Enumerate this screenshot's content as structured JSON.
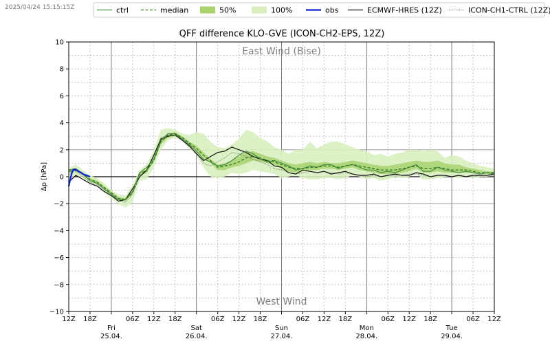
{
  "timestamp": "2025/04/24 15:15:15Z",
  "colors": {
    "ctrl": "#4a8a4a",
    "median": "#2e7d1e",
    "band50": "#a8d26e",
    "band100": "#d9efc0",
    "obs": "#0b1fd6",
    "ecmwf": "#111111",
    "ch1": "#666666",
    "grid": "#b0b0b0",
    "annotation": "#808080"
  },
  "chart_data": {
    "type": "line",
    "title": "QFF difference KLO-GVE (ICON-CH2-EPS, 12Z)",
    "xlabel": "",
    "ylabel": "Δp [hPa]",
    "ylim": [
      -10,
      10
    ],
    "yticks": [
      -10,
      -8,
      -6,
      -4,
      -2,
      0,
      2,
      4,
      6,
      8,
      10
    ],
    "xlim": [
      0,
      120
    ],
    "grid": true,
    "legend_position": "top",
    "legend": [
      {
        "key": "ctrl",
        "label": "ctrl",
        "style": "solid"
      },
      {
        "key": "median",
        "label": "median",
        "style": "dashed"
      },
      {
        "key": "band50",
        "label": "50%",
        "style": "fill"
      },
      {
        "key": "band100",
        "label": "100%",
        "style": "fill"
      },
      {
        "key": "obs",
        "label": "obs",
        "style": "solid-thick"
      },
      {
        "key": "ecmwf",
        "label": "ECMWF-HRES (12Z)",
        "style": "solid"
      },
      {
        "key": "ch1",
        "label": "ICON-CH1-CTRL (12Z)",
        "style": "dotted"
      }
    ],
    "annotations": {
      "top": "East Wind (Bise)",
      "bottom": "West Wind"
    },
    "reference_lines": [
      2,
      0,
      -2
    ],
    "x_tick_labels": [
      {
        "h": 0,
        "label": "12Z"
      },
      {
        "h": 6,
        "label": "18Z"
      },
      {
        "h": 18,
        "label": "06Z"
      },
      {
        "h": 24,
        "label": "12Z"
      },
      {
        "h": 30,
        "label": "18Z"
      },
      {
        "h": 42,
        "label": "06Z"
      },
      {
        "h": 48,
        "label": "12Z"
      },
      {
        "h": 54,
        "label": "18Z"
      },
      {
        "h": 66,
        "label": "06Z"
      },
      {
        "h": 72,
        "label": "12Z"
      },
      {
        "h": 78,
        "label": "18Z"
      },
      {
        "h": 90,
        "label": "06Z"
      },
      {
        "h": 96,
        "label": "12Z"
      },
      {
        "h": 102,
        "label": "18Z"
      },
      {
        "h": 114,
        "label": "06Z"
      },
      {
        "h": 120,
        "label": "12Z"
      }
    ],
    "days": [
      {
        "h": 12,
        "weekday": "Fri",
        "date": "25.04."
      },
      {
        "h": 36,
        "weekday": "Sat",
        "date": "26.04."
      },
      {
        "h": 60,
        "weekday": "Sun",
        "date": "27.04."
      },
      {
        "h": 84,
        "weekday": "Mon",
        "date": "28.04."
      },
      {
        "h": 108,
        "weekday": "Tue",
        "date": "29.04."
      }
    ],
    "x": [
      0,
      2,
      4,
      6,
      8,
      10,
      12,
      14,
      16,
      18,
      20,
      22,
      24,
      26,
      28,
      30,
      32,
      34,
      36,
      38,
      40,
      42,
      44,
      46,
      48,
      50,
      52,
      54,
      56,
      58,
      60,
      62,
      64,
      66,
      68,
      70,
      72,
      74,
      76,
      78,
      80,
      82,
      84,
      86,
      88,
      90,
      92,
      94,
      96,
      98,
      100,
      102,
      104,
      106,
      108,
      110,
      112,
      114,
      116,
      118,
      120
    ],
    "band100_low": [
      -0.2,
      0.1,
      -0.1,
      -0.5,
      -0.7,
      -1.2,
      -1.6,
      -2.0,
      -2.3,
      -1.9,
      -0.3,
      -0.2,
      0.7,
      2.0,
      2.7,
      2.9,
      2.7,
      2.1,
      1.6,
      0.7,
      0.0,
      -0.1,
      0.0,
      0.3,
      0.2,
      0.3,
      0.5,
      0.4,
      0.3,
      0.2,
      -0.1,
      0.0,
      0.1,
      -0.1,
      -0.2,
      -0.2,
      -0.1,
      -0.1,
      -0.2,
      -0.1,
      0.1,
      0.0,
      -0.2,
      -0.1,
      -0.3,
      -0.2,
      0.0,
      -0.1,
      0.0,
      0.2,
      -0.2,
      -0.2,
      -0.1,
      0.0,
      0.0,
      -0.1,
      0.0,
      -0.1,
      0.0,
      0.0,
      0.1
    ],
    "band100_high": [
      0.6,
      0.9,
      0.5,
      0.1,
      -0.1,
      -0.5,
      -1.0,
      -1.3,
      -1.4,
      -0.6,
      0.5,
      0.9,
      2.0,
      3.5,
      3.6,
      3.5,
      3.2,
      3.1,
      3.3,
      3.2,
      2.6,
      2.2,
      2.1,
      2.4,
      2.8,
      3.5,
      3.3,
      2.9,
      2.6,
      2.2,
      2.0,
      1.7,
      2.0,
      2.0,
      2.6,
      2.1,
      2.4,
      2.6,
      2.6,
      2.4,
      2.2,
      2.0,
      1.9,
      1.6,
      1.7,
      1.5,
      1.7,
      1.8,
      2.0,
      2.0,
      1.9,
      2.0,
      1.9,
      1.4,
      1.6,
      1.5,
      1.2,
      1.0,
      0.8,
      0.7,
      0.6
    ],
    "band50_low": [
      0.3,
      0.4,
      0.1,
      -0.3,
      -0.5,
      -0.9,
      -1.3,
      -1.7,
      -1.8,
      -1.3,
      0.1,
      0.3,
      1.1,
      2.4,
      2.9,
      3.0,
      2.8,
      2.3,
      1.9,
      1.4,
      1.0,
      0.5,
      0.5,
      0.7,
      0.8,
      1.0,
      1.2,
      1.1,
      1.0,
      0.9,
      0.6,
      0.4,
      0.3,
      0.4,
      0.5,
      0.5,
      0.6,
      0.6,
      0.5,
      0.6,
      0.7,
      0.5,
      0.4,
      0.3,
      0.2,
      0.2,
      0.2,
      0.3,
      0.4,
      0.6,
      0.3,
      0.3,
      0.4,
      0.3,
      0.3,
      0.3,
      0.3,
      0.3,
      0.3,
      0.2,
      0.2
    ],
    "band50_high": [
      0.5,
      0.6,
      0.3,
      -0.1,
      -0.3,
      -0.7,
      -1.1,
      -1.5,
      -1.6,
      -1.0,
      0.3,
      0.6,
      1.4,
      2.8,
      3.2,
      3.3,
      3.0,
      2.6,
      2.3,
      1.8,
      1.3,
      0.9,
      1.0,
      1.2,
      1.5,
      1.8,
      1.9,
      1.7,
      1.5,
      1.4,
      1.2,
      1.0,
      0.9,
      1.0,
      1.1,
      1.0,
      1.1,
      1.0,
      1.0,
      1.1,
      1.2,
      1.1,
      1.0,
      0.9,
      0.8,
      0.8,
      0.9,
      1.0,
      1.1,
      1.2,
      1.1,
      1.1,
      1.2,
      1.0,
      0.9,
      0.9,
      0.7,
      0.6,
      0.5,
      0.4,
      0.4
    ],
    "median": [
      0.4,
      0.5,
      0.2,
      -0.2,
      -0.4,
      -0.8,
      -1.2,
      -1.6,
      -1.7,
      -1.2,
      0.2,
      0.5,
      1.2,
      2.6,
      3.1,
      3.2,
      2.9,
      2.5,
      2.1,
      1.6,
      1.2,
      0.7,
      0.8,
      0.9,
      1.1,
      1.4,
      1.5,
      1.4,
      1.2,
      1.1,
      0.9,
      0.7,
      0.6,
      0.6,
      0.7,
      0.7,
      0.8,
      0.8,
      0.7,
      0.8,
      0.9,
      0.8,
      0.7,
      0.6,
      0.5,
      0.5,
      0.5,
      0.6,
      0.7,
      0.8,
      0.6,
      0.6,
      0.7,
      0.6,
      0.5,
      0.5,
      0.5,
      0.4,
      0.3,
      0.3,
      0.3
    ],
    "ctrl": [
      0.5,
      0.6,
      0.2,
      -0.3,
      -0.5,
      -0.9,
      -1.3,
      -1.7,
      -1.7,
      -1.1,
      0.3,
      0.7,
      1.3,
      2.7,
      3.2,
      3.2,
      2.8,
      2.4,
      1.9,
      1.3,
      1.1,
      0.8,
      0.9,
      1.2,
      1.6,
      1.9,
      1.7,
      1.3,
      1.1,
      1.2,
      1.0,
      0.8,
      0.5,
      0.6,
      0.8,
      0.7,
      0.9,
      0.9,
      0.6,
      0.8,
      0.9,
      0.7,
      0.5,
      0.5,
      0.3,
      0.4,
      0.3,
      0.5,
      0.7,
      0.9,
      0.4,
      0.4,
      0.7,
      0.5,
      0.4,
      0.3,
      0.4,
      0.3,
      0.2,
      0.3,
      0.2
    ],
    "ecmwf": [
      -0.4,
      0.1,
      -0.2,
      -0.5,
      -0.7,
      -1.1,
      -1.4,
      -1.8,
      -1.7,
      -0.9,
      0.0,
      0.5,
      1.6,
      2.8,
      3.0,
      3.1,
      2.7,
      2.3,
      1.7,
      1.2,
      1.5,
      1.8,
      1.9,
      2.2,
      2.0,
      1.8,
      1.5,
      1.3,
      1.2,
      0.8,
      0.7,
      0.3,
      0.2,
      0.5,
      0.4,
      0.3,
      0.4,
      0.2,
      0.3,
      0.4,
      0.2,
      0.1,
      0.1,
      0.2,
      0.0,
      0.1,
      0.2,
      0.1,
      0.1,
      0.3,
      0.2,
      0.0,
      0.1,
      0.1,
      0.0,
      0.1,
      0.0,
      0.1,
      0.1,
      0.1,
      0.2
    ],
    "ch1": [
      0.2,
      0.4,
      0.0,
      -0.4,
      -0.6,
      -1.0,
      -1.4,
      -1.8,
      -1.9,
      -1.3,
      0.0,
      0.4,
      1.5,
      2.9,
      3.1,
      3.2,
      2.7,
      2.2,
      1.8,
      1.0,
      0.8,
      1.1,
      1.4,
      1.8,
      1.7,
      1.5,
      1.3,
      1.1,
      0.9,
      0.6,
      0.5,
      0.3,
      0.2,
      0.3,
      0.4,
      0.3,
      0.4,
      0.3,
      0.2,
      0.3,
      0.2,
      0.1,
      0.0,
      0.1,
      0.0,
      0.1,
      0.1,
      0.1,
      0.2,
      0.2,
      0.1,
      0.0,
      0.1,
      0.1,
      0.0,
      0.1,
      0.0,
      0.0,
      0.1,
      0.1,
      0.1
    ],
    "obs_x": [
      0,
      0.5,
      1,
      1.5,
      2,
      2.5,
      3,
      3.5,
      4,
      4.5,
      5,
      5.5,
      6
    ],
    "obs_y": [
      -0.7,
      -0.1,
      0.4,
      0.55,
      0.5,
      0.45,
      0.35,
      0.3,
      0.2,
      0.15,
      0.1,
      0.05,
      0.0
    ]
  }
}
